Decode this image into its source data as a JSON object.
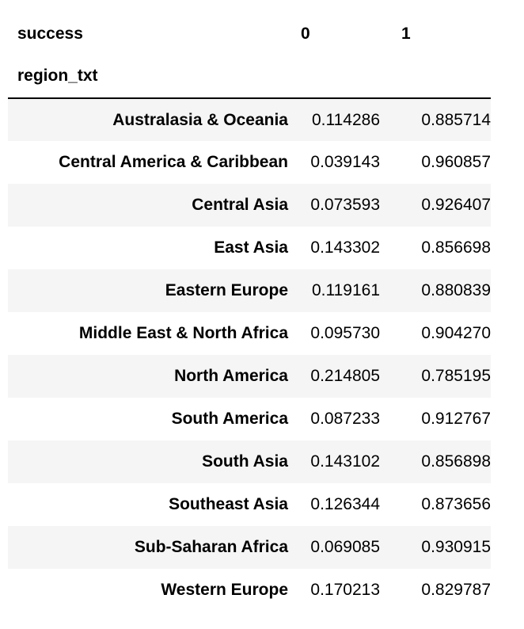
{
  "table": {
    "columns_name": "success",
    "index_name": "region_txt",
    "columns": [
      "0",
      "1"
    ],
    "rows": [
      {
        "label": "Australasia & Oceania",
        "v0": "0.114286",
        "v1": "0.885714"
      },
      {
        "label": "Central America & Caribbean",
        "v0": "0.039143",
        "v1": "0.960857"
      },
      {
        "label": "Central Asia",
        "v0": "0.073593",
        "v1": "0.926407"
      },
      {
        "label": "East Asia",
        "v0": "0.143302",
        "v1": "0.856698"
      },
      {
        "label": "Eastern Europe",
        "v0": "0.119161",
        "v1": "0.880839"
      },
      {
        "label": "Middle East & North Africa",
        "v0": "0.095730",
        "v1": "0.904270"
      },
      {
        "label": "North America",
        "v0": "0.214805",
        "v1": "0.785195"
      },
      {
        "label": "South America",
        "v0": "0.087233",
        "v1": "0.912767"
      },
      {
        "label": "South Asia",
        "v0": "0.143102",
        "v1": "0.856898"
      },
      {
        "label": "Southeast Asia",
        "v0": "0.126344",
        "v1": "0.873656"
      },
      {
        "label": "Sub-Saharan Africa",
        "v0": "0.069085",
        "v1": "0.930915"
      },
      {
        "label": "Western Europe",
        "v0": "0.170213",
        "v1": "0.829787"
      }
    ]
  },
  "colors": {
    "stripe": "#f5f5f5",
    "header_rule": "#000000",
    "text": "#000000"
  }
}
